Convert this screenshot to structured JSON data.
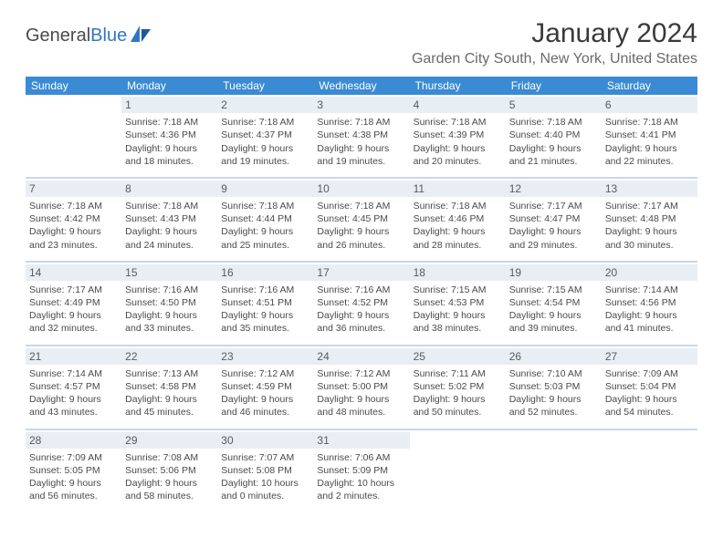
{
  "logo": {
    "text_part1": "General",
    "text_part2": "Blue"
  },
  "header": {
    "month_title": "January 2024",
    "location": "Garden City South, New York, United States"
  },
  "colors": {
    "header_bg": "#3b8bd4",
    "daynum_bg": "#e8eef4",
    "row_border": "#c9d8e6",
    "text": "#4a4a4a",
    "logo_blue": "#2f79c2"
  },
  "weekdays": [
    "Sunday",
    "Monday",
    "Tuesday",
    "Wednesday",
    "Thursday",
    "Friday",
    "Saturday"
  ],
  "weeks": [
    [
      {
        "day": "",
        "lines": []
      },
      {
        "day": "1",
        "lines": [
          "Sunrise: 7:18 AM",
          "Sunset: 4:36 PM",
          "Daylight: 9 hours",
          "and 18 minutes."
        ]
      },
      {
        "day": "2",
        "lines": [
          "Sunrise: 7:18 AM",
          "Sunset: 4:37 PM",
          "Daylight: 9 hours",
          "and 19 minutes."
        ]
      },
      {
        "day": "3",
        "lines": [
          "Sunrise: 7:18 AM",
          "Sunset: 4:38 PM",
          "Daylight: 9 hours",
          "and 19 minutes."
        ]
      },
      {
        "day": "4",
        "lines": [
          "Sunrise: 7:18 AM",
          "Sunset: 4:39 PM",
          "Daylight: 9 hours",
          "and 20 minutes."
        ]
      },
      {
        "day": "5",
        "lines": [
          "Sunrise: 7:18 AM",
          "Sunset: 4:40 PM",
          "Daylight: 9 hours",
          "and 21 minutes."
        ]
      },
      {
        "day": "6",
        "lines": [
          "Sunrise: 7:18 AM",
          "Sunset: 4:41 PM",
          "Daylight: 9 hours",
          "and 22 minutes."
        ]
      }
    ],
    [
      {
        "day": "7",
        "lines": [
          "Sunrise: 7:18 AM",
          "Sunset: 4:42 PM",
          "Daylight: 9 hours",
          "and 23 minutes."
        ]
      },
      {
        "day": "8",
        "lines": [
          "Sunrise: 7:18 AM",
          "Sunset: 4:43 PM",
          "Daylight: 9 hours",
          "and 24 minutes."
        ]
      },
      {
        "day": "9",
        "lines": [
          "Sunrise: 7:18 AM",
          "Sunset: 4:44 PM",
          "Daylight: 9 hours",
          "and 25 minutes."
        ]
      },
      {
        "day": "10",
        "lines": [
          "Sunrise: 7:18 AM",
          "Sunset: 4:45 PM",
          "Daylight: 9 hours",
          "and 26 minutes."
        ]
      },
      {
        "day": "11",
        "lines": [
          "Sunrise: 7:18 AM",
          "Sunset: 4:46 PM",
          "Daylight: 9 hours",
          "and 28 minutes."
        ]
      },
      {
        "day": "12",
        "lines": [
          "Sunrise: 7:17 AM",
          "Sunset: 4:47 PM",
          "Daylight: 9 hours",
          "and 29 minutes."
        ]
      },
      {
        "day": "13",
        "lines": [
          "Sunrise: 7:17 AM",
          "Sunset: 4:48 PM",
          "Daylight: 9 hours",
          "and 30 minutes."
        ]
      }
    ],
    [
      {
        "day": "14",
        "lines": [
          "Sunrise: 7:17 AM",
          "Sunset: 4:49 PM",
          "Daylight: 9 hours",
          "and 32 minutes."
        ]
      },
      {
        "day": "15",
        "lines": [
          "Sunrise: 7:16 AM",
          "Sunset: 4:50 PM",
          "Daylight: 9 hours",
          "and 33 minutes."
        ]
      },
      {
        "day": "16",
        "lines": [
          "Sunrise: 7:16 AM",
          "Sunset: 4:51 PM",
          "Daylight: 9 hours",
          "and 35 minutes."
        ]
      },
      {
        "day": "17",
        "lines": [
          "Sunrise: 7:16 AM",
          "Sunset: 4:52 PM",
          "Daylight: 9 hours",
          "and 36 minutes."
        ]
      },
      {
        "day": "18",
        "lines": [
          "Sunrise: 7:15 AM",
          "Sunset: 4:53 PM",
          "Daylight: 9 hours",
          "and 38 minutes."
        ]
      },
      {
        "day": "19",
        "lines": [
          "Sunrise: 7:15 AM",
          "Sunset: 4:54 PM",
          "Daylight: 9 hours",
          "and 39 minutes."
        ]
      },
      {
        "day": "20",
        "lines": [
          "Sunrise: 7:14 AM",
          "Sunset: 4:56 PM",
          "Daylight: 9 hours",
          "and 41 minutes."
        ]
      }
    ],
    [
      {
        "day": "21",
        "lines": [
          "Sunrise: 7:14 AM",
          "Sunset: 4:57 PM",
          "Daylight: 9 hours",
          "and 43 minutes."
        ]
      },
      {
        "day": "22",
        "lines": [
          "Sunrise: 7:13 AM",
          "Sunset: 4:58 PM",
          "Daylight: 9 hours",
          "and 45 minutes."
        ]
      },
      {
        "day": "23",
        "lines": [
          "Sunrise: 7:12 AM",
          "Sunset: 4:59 PM",
          "Daylight: 9 hours",
          "and 46 minutes."
        ]
      },
      {
        "day": "24",
        "lines": [
          "Sunrise: 7:12 AM",
          "Sunset: 5:00 PM",
          "Daylight: 9 hours",
          "and 48 minutes."
        ]
      },
      {
        "day": "25",
        "lines": [
          "Sunrise: 7:11 AM",
          "Sunset: 5:02 PM",
          "Daylight: 9 hours",
          "and 50 minutes."
        ]
      },
      {
        "day": "26",
        "lines": [
          "Sunrise: 7:10 AM",
          "Sunset: 5:03 PM",
          "Daylight: 9 hours",
          "and 52 minutes."
        ]
      },
      {
        "day": "27",
        "lines": [
          "Sunrise: 7:09 AM",
          "Sunset: 5:04 PM",
          "Daylight: 9 hours",
          "and 54 minutes."
        ]
      }
    ],
    [
      {
        "day": "28",
        "lines": [
          "Sunrise: 7:09 AM",
          "Sunset: 5:05 PM",
          "Daylight: 9 hours",
          "and 56 minutes."
        ]
      },
      {
        "day": "29",
        "lines": [
          "Sunrise: 7:08 AM",
          "Sunset: 5:06 PM",
          "Daylight: 9 hours",
          "and 58 minutes."
        ]
      },
      {
        "day": "30",
        "lines": [
          "Sunrise: 7:07 AM",
          "Sunset: 5:08 PM",
          "Daylight: 10 hours",
          "and 0 minutes."
        ]
      },
      {
        "day": "31",
        "lines": [
          "Sunrise: 7:06 AM",
          "Sunset: 5:09 PM",
          "Daylight: 10 hours",
          "and 2 minutes."
        ]
      },
      {
        "day": "",
        "lines": []
      },
      {
        "day": "",
        "lines": []
      },
      {
        "day": "",
        "lines": []
      }
    ]
  ]
}
